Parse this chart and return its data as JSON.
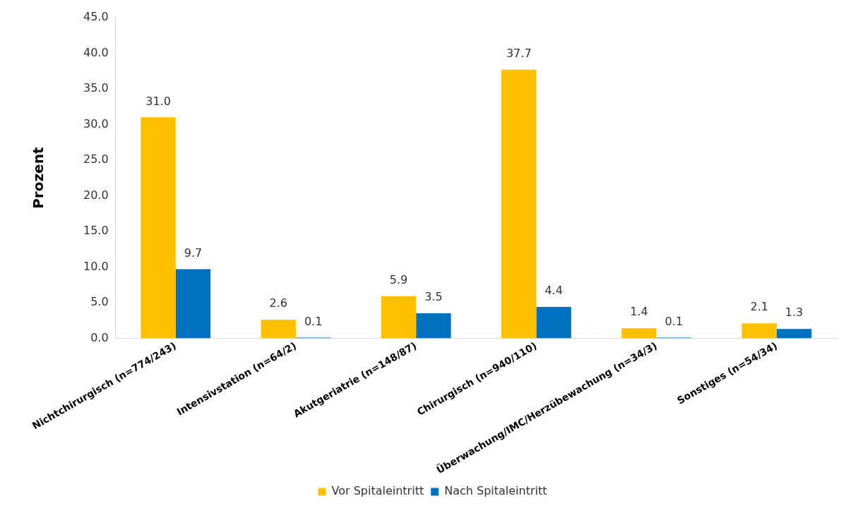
{
  "chart_data": {
    "type": "bar",
    "ylabel": "Prozent",
    "categories": [
      "Nichtchirurgisch (n=774/243)",
      "Intensivstation (n=64/2)",
      "Akutgeriatrie (n=148/87)",
      "Chirurgisch (n=940/110)",
      "Überwachung/IMC/Herzübewachung (n=34/3)",
      "Sonstiges (n=54/34)"
    ],
    "series": [
      {
        "name": "Vor Spitaleintritt",
        "color": "#ffc000",
        "values": [
          31.0,
          2.6,
          5.9,
          37.7,
          1.4,
          2.1
        ],
        "value_labels": [
          "31.0",
          "2.6",
          "5.9",
          "37.7",
          "1.4",
          "2.1"
        ]
      },
      {
        "name": "Nach Spitaleintritt",
        "color": "#0070c0",
        "values": [
          9.7,
          0.1,
          3.5,
          4.4,
          0.1,
          1.3
        ],
        "value_labels": [
          "9.7",
          "0.1",
          "3.5",
          "4.4",
          "0.1",
          "1.3"
        ]
      }
    ],
    "ylim": [
      0,
      45
    ],
    "yticks": [
      {
        "value": 0,
        "label": "0.0"
      },
      {
        "value": 5,
        "label": "5.0"
      },
      {
        "value": 10,
        "label": "10.0"
      },
      {
        "value": 15,
        "label": "15.0"
      },
      {
        "value": 20,
        "label": "20.0"
      },
      {
        "value": 25,
        "label": "25.0"
      },
      {
        "value": 30,
        "label": "30.0"
      },
      {
        "value": 35,
        "label": "35.0"
      },
      {
        "value": 40,
        "label": "40.0"
      },
      {
        "value": 45,
        "label": "45.0"
      }
    ],
    "grid": false,
    "legend": "bottom"
  }
}
